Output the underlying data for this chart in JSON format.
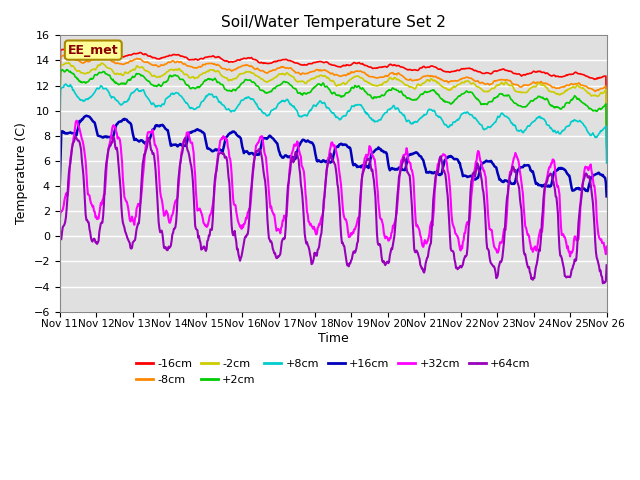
{
  "title": "Soil/Water Temperature Set 2",
  "xlabel": "Time",
  "ylabel": "Temperature (C)",
  "ylim": [
    -6,
    16
  ],
  "yticks": [
    -6,
    -4,
    -2,
    0,
    2,
    4,
    6,
    8,
    10,
    12,
    14,
    16
  ],
  "n_days": 15,
  "series_colors": {
    "-16cm": "#ff0000",
    "-8cm": "#ff8800",
    "-2cm": "#cccc00",
    "+2cm": "#00cc00",
    "+8cm": "#00cccc",
    "+16cm": "#0000bb",
    "+32cm": "#ff00ff",
    "+64cm": "#9900bb"
  },
  "series_order": [
    "-16cm",
    "-8cm",
    "-2cm",
    "+2cm",
    "+8cm",
    "+16cm",
    "+32cm",
    "+64cm"
  ],
  "bg_color": "#ffffff",
  "plot_bg_color": "#e0e0e0",
  "grid_color": "#c8c8c8",
  "annotation_text": "EE_met",
  "annotation_bg": "#ffff99",
  "annotation_border": "#aa8800",
  "tick_labels": [
    "Nov 11",
    "Nov 12",
    "Nov 13",
    "Nov 14",
    "Nov 15",
    "Nov 16",
    "Nov 17",
    "Nov 18",
    "Nov 19",
    "Nov 20",
    "Nov 21",
    "Nov 22",
    "Nov 23",
    "Nov 24",
    "Nov 25",
    "Nov 26"
  ],
  "legend_ncol": 6
}
